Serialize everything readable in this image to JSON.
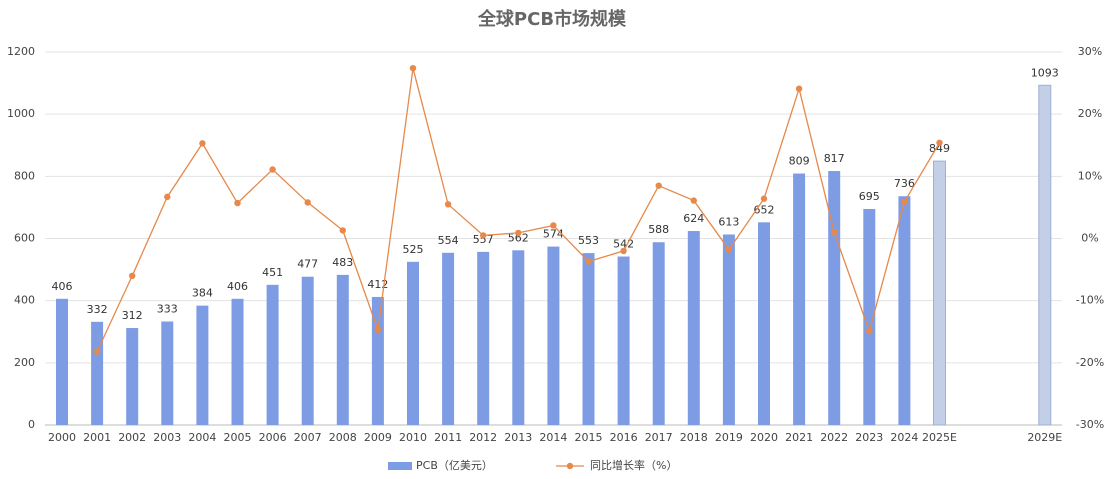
{
  "chart_data": {
    "type": "bar_line",
    "title": "全球PCB市场规模",
    "categories": [
      "2000",
      "2001",
      "2002",
      "2003",
      "2004",
      "2005",
      "2006",
      "2007",
      "2008",
      "2009",
      "2010",
      "2011",
      "2012",
      "2013",
      "2014",
      "2015",
      "2016",
      "2017",
      "2018",
      "2019",
      "2020",
      "2021",
      "2022",
      "2023",
      "2024",
      "2025E",
      null,
      null,
      "2029E"
    ],
    "series": [
      {
        "name": "PCB（亿美元）",
        "color": "#7e9ce4",
        "colors": [
          "#7e9ce4",
          "#7e9ce4",
          "#7e9ce4",
          "#7e9ce4",
          "#7e9ce4",
          "#7e9ce4",
          "#7e9ce4",
          "#7e9ce4",
          "#7e9ce4",
          "#7e9ce4",
          "#7e9ce4",
          "#7e9ce4",
          "#7e9ce4",
          "#7e9ce4",
          "#7e9ce4",
          "#7e9ce4",
          "#7e9ce4",
          "#7e9ce4",
          "#7e9ce4",
          "#7e9ce4",
          "#7e9ce4",
          "#7e9ce4",
          "#7e9ce4",
          "#7e9ce4",
          "#7e9ce4",
          "#c3cfe6",
          null,
          null,
          "#c3cfe6"
        ],
        "values": [
          406,
          332,
          312,
          333,
          384,
          406,
          451,
          477,
          483,
          412,
          525,
          554,
          557,
          562,
          574,
          553,
          542,
          588,
          624,
          613,
          652,
          809,
          817,
          695,
          736,
          849,
          null,
          null,
          1093
        ]
      },
      {
        "name": "同比增长率（%）",
        "color": "#e6894a",
        "axis": "y2",
        "values": [
          null,
          -18.2,
          -6.0,
          6.7,
          15.3,
          5.7,
          11.1,
          5.8,
          1.3,
          -14.7,
          27.4,
          5.5,
          0.5,
          0.9,
          2.1,
          -3.7,
          -2.0,
          8.5,
          6.1,
          -1.8,
          6.4,
          24.1,
          1.0,
          -14.9,
          5.9,
          15.4,
          null,
          null,
          null
        ]
      }
    ],
    "ylim": [
      0,
      1200
    ],
    "yticks": [
      0,
      200,
      400,
      600,
      800,
      1000,
      1200
    ],
    "y2lim": [
      -30,
      30
    ],
    "y2ticks": [
      {
        "value": -30,
        "label": "-30%"
      },
      {
        "value": -20,
        "label": "-20%"
      },
      {
        "value": -10,
        "label": "-10%"
      },
      {
        "value": 0,
        "label": "0%"
      },
      {
        "value": 10,
        "label": "10%"
      },
      {
        "value": 20,
        "label": "20%"
      },
      {
        "value": 30,
        "label": "30%"
      }
    ],
    "grid": true,
    "legend": "bottom"
  }
}
